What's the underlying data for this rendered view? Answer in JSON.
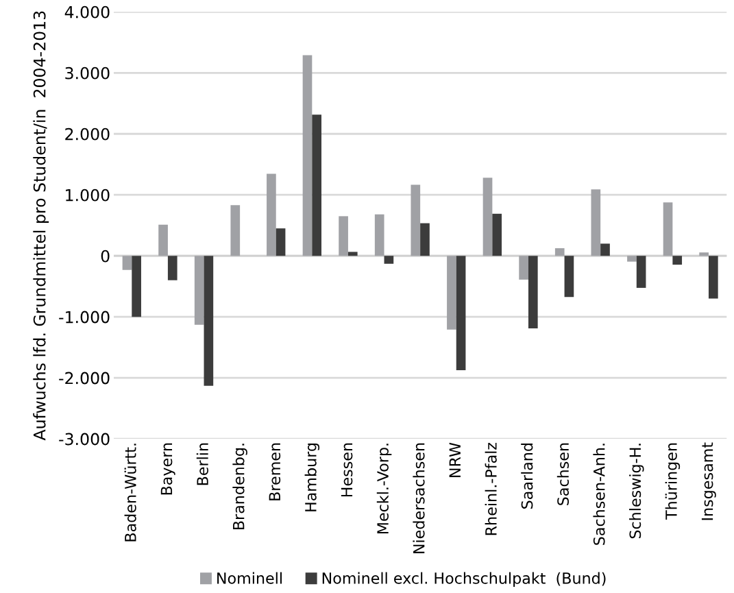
{
  "chart_data": {
    "type": "bar",
    "ylabel": "Aufwuchs lfd. Grundmittel pro Student/in  2004-2013",
    "categories": [
      "Baden-Württ.",
      "Bayern",
      "Berlin",
      "Brandenbg.",
      "Bremen",
      "Hamburg",
      "Hessen",
      "Meckl.-Vorp.",
      "Niedersachsen",
      "NRW",
      "Rheinl.-Pfalz",
      "Saarland",
      "Sachsen",
      "Sachsen-Anh.",
      "Schleswig-H.",
      "Thüringen",
      "Insgesamt"
    ],
    "series": [
      {
        "name": "Nominell",
        "color": "#a0a1a5",
        "values": [
          -230,
          510,
          -1130,
          830,
          1345,
          3290,
          650,
          680,
          1165,
          -1210,
          1280,
          -390,
          125,
          1090,
          -95,
          875,
          55
        ]
      },
      {
        "name": "Nominell excl. Hochschulpakt  (Bund)",
        "color": "#3c3c3c",
        "values": [
          -1000,
          -400,
          -2130,
          0,
          450,
          2315,
          65,
          -130,
          535,
          -1875,
          690,
          -1190,
          -675,
          200,
          -525,
          -145,
          -700
        ]
      }
    ],
    "ylim": [
      -3000,
      4000
    ],
    "yticks": [
      {
        "value": -3000,
        "label": "-3.000"
      },
      {
        "value": -2000,
        "label": "-2.000"
      },
      {
        "value": -1000,
        "label": "-1.000"
      },
      {
        "value": 0,
        "label": "0"
      },
      {
        "value": 1000,
        "label": "1.000"
      },
      {
        "value": 2000,
        "label": "2.000"
      },
      {
        "value": 3000,
        "label": "3.000"
      },
      {
        "value": 4000,
        "label": "4.000"
      }
    ],
    "grid": "y",
    "legend": "bottom"
  }
}
